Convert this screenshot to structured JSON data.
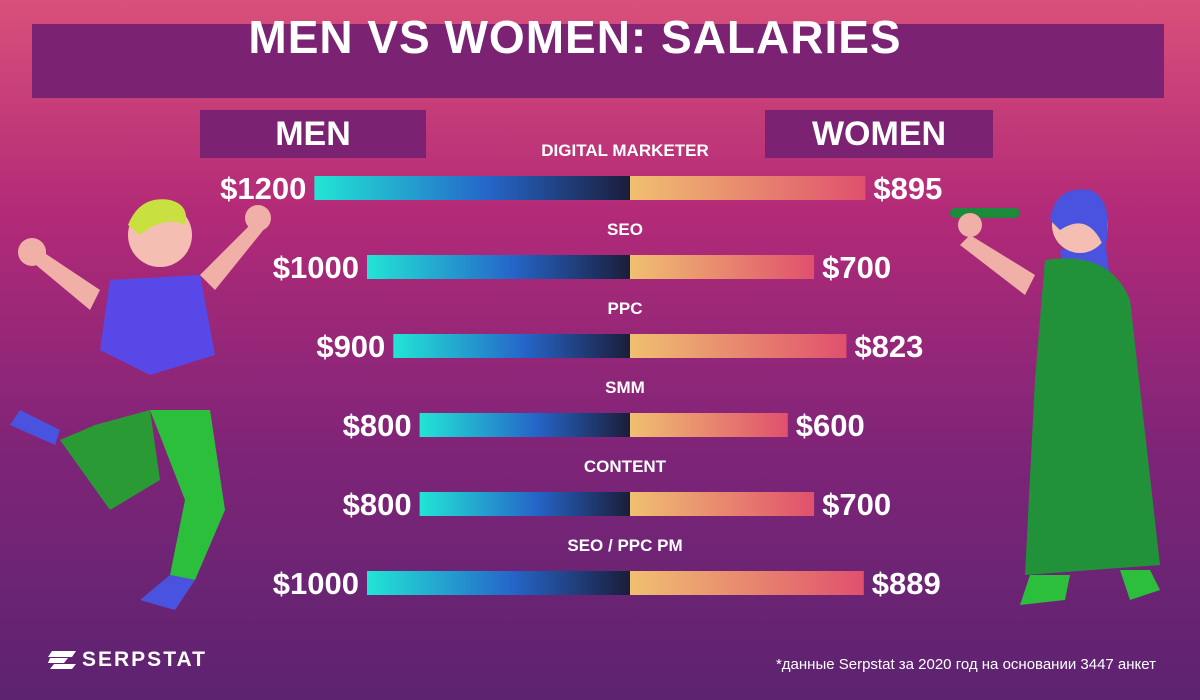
{
  "title": "MEN VS WOMEN: SALARIES",
  "labels": {
    "men": "MEN",
    "women": "WOMEN"
  },
  "colors": {
    "men_bar_start": "#22e5d5",
    "men_bar_mid": "#2566c9",
    "men_bar_end": "#1b1d3a",
    "women_bar_start": "#f0c070",
    "women_bar_end": "#e0506e"
  },
  "chart_data": {
    "type": "bar",
    "categories": [
      "DIGITAL MARKETER",
      "SEO",
      "PPC",
      "SMM",
      "CONTENT",
      "SEO / PPC PM"
    ],
    "series": [
      {
        "name": "MEN",
        "values": [
          1200,
          1000,
          900,
          800,
          800,
          1000
        ],
        "labels": [
          "$1200",
          "$1000",
          "$900",
          "$800",
          "$800",
          "$1000"
        ]
      },
      {
        "name": "WOMEN",
        "values": [
          895,
          700,
          823,
          600,
          700,
          889
        ],
        "labels": [
          "$895",
          "$700",
          "$823",
          "$600",
          "$700",
          "$889"
        ]
      }
    ]
  },
  "footnote": "*данные Serpstat за 2020 год на основании 3447 анкет",
  "brand": "SERPSTAT"
}
